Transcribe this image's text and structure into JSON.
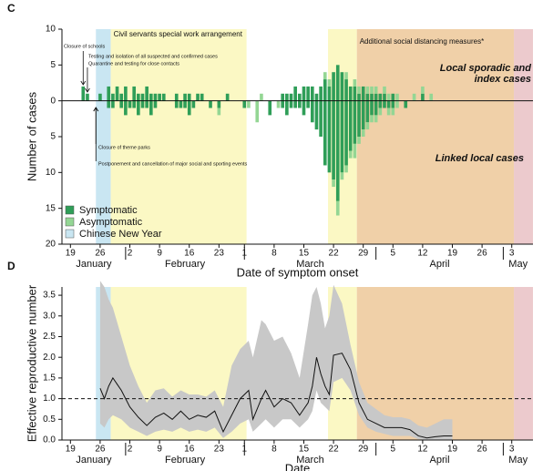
{
  "chart_data": [
    {
      "type": "bar",
      "panel": "C",
      "ylabel": "Number of cases",
      "xlabel": "Date of symptom onset",
      "xlim": [
        -2,
        109
      ],
      "ylim": [
        -20,
        10
      ],
      "yticks": [
        10,
        5,
        0,
        {
          "value": -5,
          "label": "5"
        },
        {
          "value": -10,
          "label": "10"
        },
        {
          "value": -15,
          "label": "15"
        },
        {
          "value": -20,
          "label": "20"
        }
      ],
      "xticks": [
        {
          "value": 0,
          "label": "19"
        },
        {
          "value": 7,
          "label": "26"
        },
        {
          "value": 14,
          "label": "2"
        },
        {
          "value": 21,
          "label": "9"
        },
        {
          "value": 28,
          "label": "16"
        },
        {
          "value": 35,
          "label": "23"
        },
        {
          "value": 41,
          "label": "1"
        },
        {
          "value": 48,
          "label": "8"
        },
        {
          "value": 55,
          "label": "15"
        },
        {
          "value": 62,
          "label": "22"
        },
        {
          "value": 69,
          "label": "29"
        },
        {
          "value": 76,
          "label": "5"
        },
        {
          "value": 83,
          "label": "12"
        },
        {
          "value": 90,
          "label": "19"
        },
        {
          "value": 97,
          "label": "26"
        },
        {
          "value": 104,
          "label": "3"
        }
      ],
      "months": [
        {
          "value": -2,
          "label": "January"
        },
        {
          "value": 13,
          "label": "February"
        },
        {
          "value": 41,
          "label": "March"
        },
        {
          "value": 72,
          "label": "April"
        },
        {
          "value": 102,
          "label": "May"
        }
      ],
      "regions": [
        {
          "name": "Chinese New Year",
          "start": 6,
          "end": 9.5,
          "color": "#c9e6f2"
        },
        {
          "label": "Civil servants special work arrangement",
          "start": 9.5,
          "end": 41.5,
          "color": "#fbf8c4"
        },
        {
          "start": 60.7,
          "end": 67.5,
          "color": "#fbf8c4"
        },
        {
          "label": "Additional social distancing measures*",
          "start": 67.5,
          "end": 104.5,
          "color": "#f0d0a8"
        },
        {
          "start": 104.5,
          "end": 109,
          "color": "#eccacd"
        }
      ],
      "events": [
        {
          "text": "Closure of schools",
          "day": 3
        },
        {
          "text": "Testing and isolation of all suspected and confirmed cases",
          "day": 4
        },
        {
          "text": "Quarantine and testing for close contacts",
          "day": 4
        },
        {
          "text": "Closure of theme parks",
          "day": 6
        },
        {
          "text": "Postponement and cancellation of major social and sporting events",
          "day": 6
        }
      ],
      "above_label": [
        "Local sporadic and",
        "index cases"
      ],
      "below_label": "Linked local cases",
      "x": [
        3,
        4,
        7,
        9,
        10,
        11,
        12,
        13,
        14,
        15,
        16,
        17,
        18,
        19,
        20,
        21,
        22,
        25,
        26,
        27,
        28,
        29,
        30,
        31,
        33,
        35,
        37,
        41,
        42,
        44,
        45,
        47,
        49,
        50,
        51,
        52,
        53,
        54,
        55,
        56,
        57,
        58,
        59,
        60,
        61,
        62,
        63,
        64,
        65,
        66,
        67,
        68,
        69,
        70,
        71,
        72,
        73,
        74,
        75,
        76,
        77,
        79,
        81,
        83,
        85
      ],
      "series": [
        {
          "name": "Symptomatic",
          "color": "#2f9e58",
          "values": [
            2,
            1,
            1,
            2,
            1,
            2,
            1,
            2,
            0,
            2,
            1,
            1,
            2,
            1,
            1,
            1,
            1,
            1,
            0,
            1,
            1,
            0,
            1,
            1,
            0,
            0,
            1,
            0,
            0,
            0,
            0,
            0,
            0,
            1,
            1,
            1,
            2,
            1,
            2,
            2,
            2,
            1,
            2,
            3,
            2,
            4,
            5,
            4,
            3,
            2,
            2,
            1,
            2,
            1,
            1,
            1,
            1,
            1,
            0,
            1,
            0,
            0,
            0,
            1,
            0
          ],
          "linked_values": [
            0,
            0,
            0,
            1,
            1,
            0,
            1,
            2,
            1,
            1,
            2,
            1,
            1,
            2,
            1,
            0,
            0,
            1,
            1,
            1,
            2,
            1,
            0,
            0,
            1,
            1,
            0,
            1,
            0,
            0,
            0,
            2,
            0,
            1,
            2,
            1,
            1,
            1,
            2,
            1,
            3,
            4,
            5,
            9,
            10,
            11,
            14,
            10,
            9,
            7,
            6,
            5,
            4,
            3,
            2,
            2,
            1,
            1,
            1,
            1,
            0,
            1,
            0,
            0,
            0
          ]
        },
        {
          "name": "Asymptomatic",
          "color": "#94d694",
          "values": [
            0,
            0,
            0,
            0,
            0,
            0,
            0,
            0,
            0,
            0,
            0,
            0,
            0,
            0,
            0,
            0,
            0,
            0,
            0,
            0,
            0,
            0,
            0,
            0,
            0,
            0,
            0,
            0,
            0,
            0,
            1,
            0,
            0,
            0,
            0,
            0,
            0,
            0,
            0,
            0,
            0,
            0,
            0,
            1,
            1,
            0,
            0,
            0,
            1,
            0,
            1,
            1,
            0,
            1,
            1,
            1,
            0,
            1,
            1,
            0,
            1,
            0,
            1,
            1,
            1
          ],
          "linked_values": [
            0,
            0,
            0,
            0,
            0,
            0,
            0,
            0,
            0,
            0,
            0,
            0,
            0,
            0,
            0,
            0,
            0,
            0,
            0,
            0,
            0,
            0,
            0,
            0,
            0,
            1,
            0,
            0,
            1,
            3,
            0,
            0,
            1,
            0,
            0,
            0,
            0,
            0,
            0,
            0,
            0,
            0,
            0,
            0,
            0,
            1,
            2,
            1,
            1,
            1,
            2,
            1,
            1,
            1,
            1,
            1,
            1,
            0,
            1,
            1,
            1,
            0,
            0,
            0,
            0
          ]
        }
      ]
    },
    {
      "type": "line",
      "panel": "D",
      "ylabel": "Effective reproductive number",
      "xlabel": "Date",
      "xlim": [
        -2,
        109
      ],
      "ylim": [
        0,
        3.7
      ],
      "reference": 1,
      "color": "#111111",
      "band_color": "#c8c8c8",
      "yticks": [
        {
          "value": 0,
          "label": "0.0"
        },
        0.5,
        {
          "value": 1,
          "label": "1.0"
        },
        1.5,
        {
          "value": 2,
          "label": "2.0"
        },
        2.5,
        {
          "value": 3,
          "label": "3.0"
        },
        3.5
      ],
      "xticks": [
        {
          "value": 0,
          "label": "19"
        },
        {
          "value": 7,
          "label": "26"
        },
        {
          "value": 14,
          "label": "2"
        },
        {
          "value": 21,
          "label": "9"
        },
        {
          "value": 28,
          "label": "16"
        },
        {
          "value": 35,
          "label": "23"
        },
        {
          "value": 41,
          "label": "1"
        },
        {
          "value": 48,
          "label": "8"
        },
        {
          "value": 55,
          "label": "15"
        },
        {
          "value": 62,
          "label": "22"
        },
        {
          "value": 69,
          "label": "29"
        },
        {
          "value": 76,
          "label": "5"
        },
        {
          "value": 83,
          "label": "12"
        },
        {
          "value": 90,
          "label": "19"
        },
        {
          "value": 97,
          "label": "26"
        },
        {
          "value": 104,
          "label": "3"
        }
      ],
      "months": [
        {
          "value": -2,
          "label": "January"
        },
        {
          "value": 13,
          "label": "February"
        },
        {
          "value": 41,
          "label": "March"
        },
        {
          "value": 72,
          "label": "April"
        },
        {
          "value": 102,
          "label": "May"
        }
      ],
      "regions": [
        {
          "start": 6,
          "end": 9.5,
          "color": "#c9e6f2"
        },
        {
          "start": 9.5,
          "end": 41.5,
          "color": "#fbf8c4"
        },
        {
          "start": 60.7,
          "end": 67.5,
          "color": "#fbf8c4"
        },
        {
          "start": 67.5,
          "end": 104.5,
          "color": "#f0d0a8"
        },
        {
          "start": 104.5,
          "end": 109,
          "color": "#eccacd"
        }
      ],
      "x": [
        7,
        8,
        9,
        10,
        12,
        14,
        16,
        18,
        20,
        22,
        24,
        26,
        28,
        30,
        32,
        34,
        36,
        38,
        40,
        42,
        43,
        45,
        46,
        48,
        50,
        52,
        54,
        56,
        57,
        58,
        59,
        60,
        61,
        62,
        64,
        66,
        68,
        70,
        72,
        74,
        76,
        78,
        80,
        82,
        84,
        86,
        88,
        90
      ],
      "values": [
        1.25,
        1.0,
        1.3,
        1.5,
        1.2,
        0.8,
        0.55,
        0.35,
        0.55,
        0.65,
        0.5,
        0.7,
        0.5,
        0.6,
        0.55,
        0.7,
        0.2,
        0.6,
        1.0,
        1.2,
        0.5,
        1.0,
        1.2,
        0.8,
        1.0,
        0.9,
        0.6,
        0.9,
        1.3,
        2.0,
        1.6,
        1.3,
        1.1,
        2.05,
        2.1,
        1.7,
        0.9,
        0.5,
        0.4,
        0.3,
        0.3,
        0.3,
        0.25,
        0.1,
        0.05,
        0.08,
        0.1,
        0.1
      ],
      "lower": [
        0.4,
        0.3,
        0.5,
        0.6,
        0.5,
        0.3,
        0.2,
        0.1,
        0.2,
        0.25,
        0.2,
        0.3,
        0.2,
        0.25,
        0.2,
        0.3,
        0.05,
        0.2,
        0.4,
        0.5,
        0.2,
        0.4,
        0.5,
        0.3,
        0.5,
        0.5,
        0.3,
        0.5,
        0.7,
        1.2,
        0.9,
        0.8,
        0.7,
        1.4,
        1.5,
        1.2,
        0.6,
        0.3,
        0.2,
        0.15,
        0.1,
        0.1,
        0.1,
        0.02,
        0,
        0,
        0,
        0
      ],
      "upper": [
        3.85,
        3.7,
        3.4,
        3.2,
        2.5,
        1.8,
        1.3,
        0.9,
        1.2,
        1.25,
        1.05,
        1.2,
        1.1,
        1.1,
        1.05,
        1.2,
        0.8,
        1.8,
        2.2,
        2.4,
        2.0,
        2.9,
        2.8,
        2.4,
        2.5,
        2.1,
        1.5,
        2.8,
        3.5,
        3.7,
        3.3,
        2.7,
        3.0,
        3.75,
        3.3,
        2.3,
        1.4,
        0.9,
        0.75,
        0.6,
        0.55,
        0.55,
        0.5,
        0.35,
        0.3,
        0.4,
        0.5,
        0.5
      ]
    }
  ]
}
